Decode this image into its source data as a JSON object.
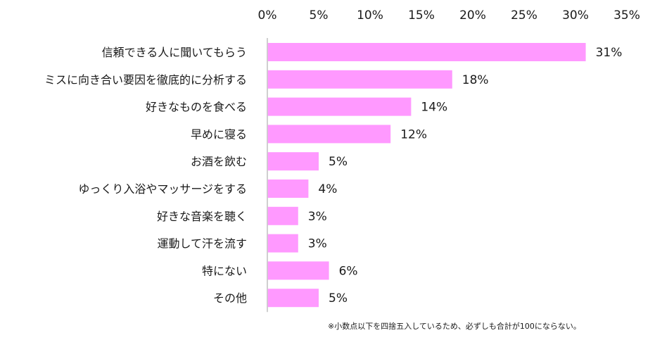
{
  "chart_data": {
    "type": "bar",
    "orientation": "horizontal",
    "categories": [
      "信頼できる人に聞いてもらう",
      "ミスに向き合い要因を徹底的に分析する",
      "好きなものを食べる",
      "早めに寝る",
      "お酒を飲む",
      "ゆっくり入浴やマッサージをする",
      "好きな音楽を聴く",
      "運動して汗を流す",
      "特にない",
      "その他"
    ],
    "values": [
      31,
      18,
      14,
      12,
      5,
      4,
      3,
      3,
      6,
      5
    ],
    "value_labels": [
      "31%",
      "18%",
      "14%",
      "12%",
      "5%",
      "4%",
      "3%",
      "3%",
      "6%",
      "5%"
    ],
    "xlim": [
      0,
      35
    ],
    "ticks": [
      "0%",
      "5%",
      "10%",
      "15%",
      "20%",
      "25%",
      "30%",
      "35%"
    ],
    "tick_values": [
      0,
      5,
      10,
      15,
      20,
      25,
      30,
      35
    ],
    "title": "",
    "xlabel": "",
    "ylabel": "",
    "grid": false,
    "legend": "none",
    "bar_color": "#ff99ff",
    "axis_color": "#bfbfbf"
  },
  "footnote": "※小数点以下を四捨五入しているため、必ずしも合計が100にならない。"
}
